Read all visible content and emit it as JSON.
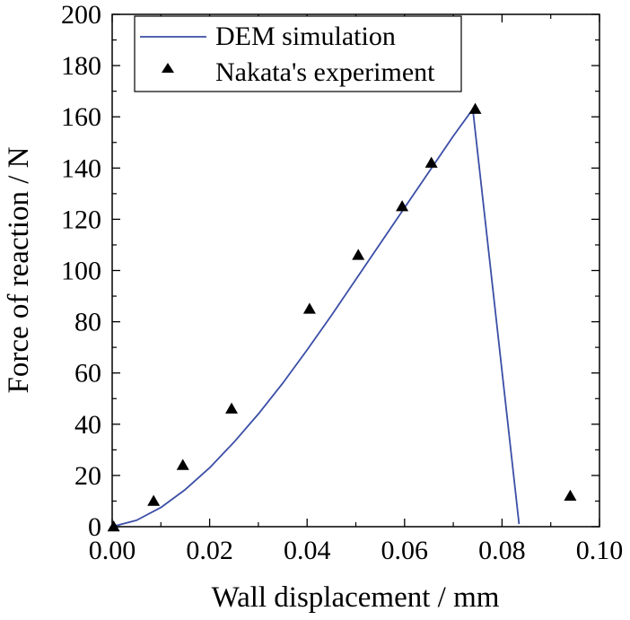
{
  "chart_data": {
    "type": "line",
    "xlabel": "Wall displacement / mm",
    "ylabel": "Force of reaction / N",
    "xlim": [
      0,
      0.1
    ],
    "ylim": [
      0,
      200
    ],
    "xticks": [
      "0.00",
      "0.02",
      "0.04",
      "0.06",
      "0.08",
      "0.10"
    ],
    "yticks": [
      "0",
      "20",
      "40",
      "60",
      "80",
      "100",
      "120",
      "140",
      "160",
      "180",
      "200"
    ],
    "grid": false,
    "legend_position": "top-left",
    "series": [
      {
        "name": "DEM simulation",
        "style": "line",
        "color": "#3b4ea6",
        "x": [
          0,
          0.005,
          0.01,
          0.015,
          0.02,
          0.025,
          0.03,
          0.035,
          0.04,
          0.045,
          0.05,
          0.055,
          0.06,
          0.065,
          0.07,
          0.074,
          0.0835
        ],
        "y": [
          0,
          2.5,
          7.5,
          14.5,
          23,
          33,
          44,
          56,
          69,
          82.5,
          96.5,
          110.5,
          124.5,
          138.5,
          152.5,
          163,
          1
        ]
      },
      {
        "name": "Nakata's experiment",
        "style": "marker-triangle",
        "color": "#000000",
        "x": [
          0.0003,
          0.0085,
          0.0145,
          0.0245,
          0.0405,
          0.0505,
          0.0595,
          0.0655,
          0.0745,
          0.094
        ],
        "y": [
          0,
          10,
          24,
          46,
          85,
          106,
          125,
          142,
          163,
          12
        ]
      }
    ]
  }
}
